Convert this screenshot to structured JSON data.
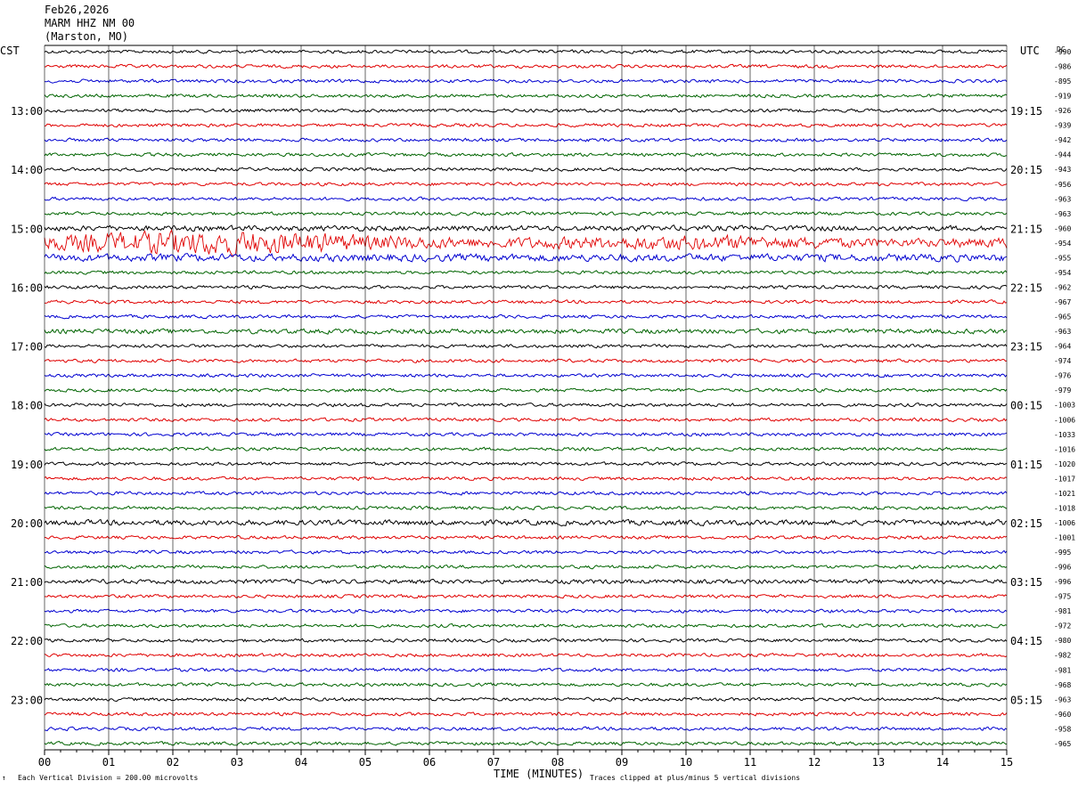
{
  "header": {
    "date": "Feb26,2026",
    "station": "MARM HHZ NM 00",
    "location": "(Marston, MO)"
  },
  "axis_labels": {
    "left_tz": "CST",
    "right_tz": "UTC",
    "dc": "DC",
    "xlabel": "TIME (MINUTES)"
  },
  "footer": {
    "mark": "↑",
    "scale_note": "Each Vertical Division =  200.00 microvolts",
    "clip_note": "Traces clipped at plus/minus 5 vertical divisions"
  },
  "chart_data": {
    "type": "line",
    "title": "",
    "xlabel": "TIME (MINUTES)",
    "xlim": [
      0,
      15
    ],
    "x_ticks": [
      "00",
      "01",
      "02",
      "03",
      "04",
      "05",
      "06",
      "07",
      "08",
      "09",
      "10",
      "11",
      "12",
      "13",
      "14",
      "15"
    ],
    "trace_colors": [
      "#000000",
      "#e00000",
      "#0000d0",
      "#006400"
    ],
    "left_hour_labels": [
      "13:00",
      "14:00",
      "15:00",
      "16:00",
      "17:00",
      "18:00",
      "19:00",
      "20:00",
      "21:00",
      "22:00",
      "23:00"
    ],
    "right_hour_labels": [
      "19:15",
      "20:15",
      "21:15",
      "22:15",
      "23:15",
      "00:15",
      "01:15",
      "02:15",
      "03:15",
      "04:15",
      "05:15"
    ],
    "dc_offsets": [
      -990,
      -986,
      -895,
      -919,
      -926,
      -939,
      -942,
      -944,
      -943,
      -956,
      -963,
      -963,
      -960,
      -954,
      -955,
      -954,
      -962,
      -967,
      -965,
      -963,
      -964,
      -974,
      -976,
      -979,
      -1003,
      -1006,
      -1033,
      -1016,
      -1020,
      -1017,
      -1021,
      -1018,
      -1006,
      -1001,
      -995,
      -996,
      -996,
      -975,
      -981,
      -972,
      -980,
      -982,
      -981,
      -968,
      -963,
      -960,
      -958,
      -965
    ],
    "trace_amplitude": [
      1,
      1,
      1,
      1,
      1,
      1,
      1,
      1,
      1,
      1,
      1,
      1,
      1.6,
      6,
      2.2,
      1,
      1,
      1,
      1,
      1.4,
      1,
      1,
      1,
      1,
      1,
      1,
      1,
      1,
      1,
      1,
      1,
      1,
      1.6,
      1,
      1,
      1,
      1.3,
      1,
      1,
      1,
      1,
      1,
      1,
      1,
      1,
      1,
      1,
      1
    ],
    "num_traces": 48
  }
}
